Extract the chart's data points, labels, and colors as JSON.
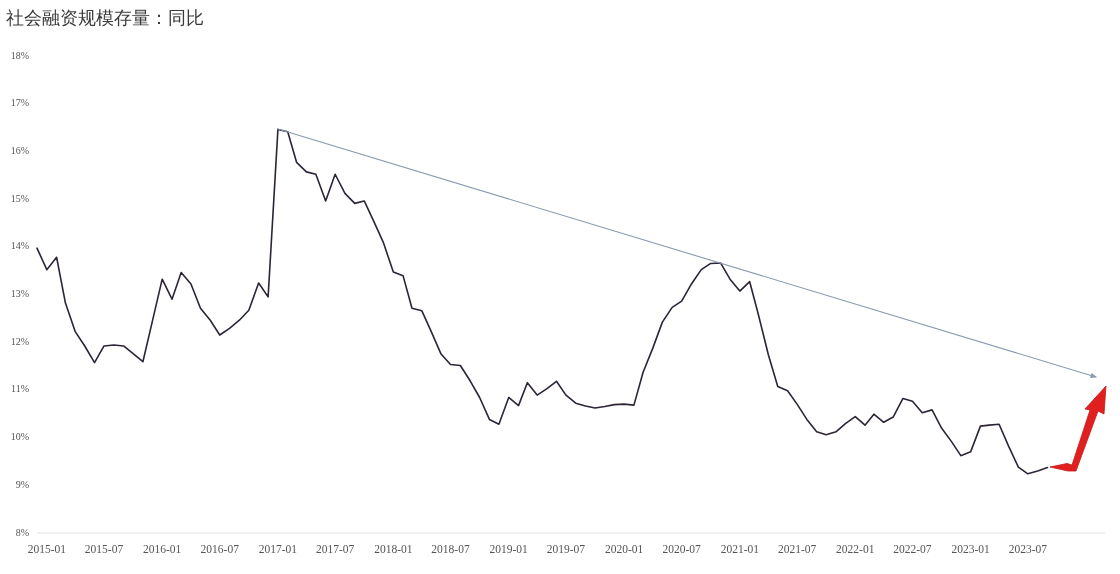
{
  "chart_data": {
    "type": "line",
    "title": "社会融资规模存量：同比",
    "xlim": [
      "2014-12",
      "2024-03"
    ],
    "xticks": [
      "2015-01",
      "2015-07",
      "2016-01",
      "2016-07",
      "2017-01",
      "2017-07",
      "2018-01",
      "2018-07",
      "2019-01",
      "2019-07",
      "2020-01",
      "2020-07",
      "2021-01",
      "2021-07",
      "2022-01",
      "2022-07",
      "2023-01",
      "2023-07"
    ],
    "ylim": [
      8,
      18
    ],
    "yticks": [
      {
        "value": 8,
        "label": "8%"
      },
      {
        "value": 9,
        "label": "9%"
      },
      {
        "value": 10,
        "label": "10%"
      },
      {
        "value": 11,
        "label": "11%"
      },
      {
        "value": 12,
        "label": "12%"
      },
      {
        "value": 13,
        "label": "13%"
      },
      {
        "value": 14,
        "label": "14%"
      },
      {
        "value": 15,
        "label": "15%"
      },
      {
        "value": 16,
        "label": "16%"
      },
      {
        "value": 17,
        "label": "17%"
      },
      {
        "value": 18,
        "label": "18%"
      }
    ],
    "x": [
      "2014-12",
      "2015-01",
      "2015-02",
      "2015-03",
      "2015-04",
      "2015-05",
      "2015-06",
      "2015-07",
      "2015-08",
      "2015-09",
      "2015-10",
      "2015-11",
      "2015-12",
      "2016-01",
      "2016-02",
      "2016-03",
      "2016-04",
      "2016-05",
      "2016-06",
      "2016-07",
      "2016-08",
      "2016-09",
      "2016-10",
      "2016-11",
      "2016-12",
      "2017-01",
      "2017-02",
      "2017-03",
      "2017-04",
      "2017-05",
      "2017-06",
      "2017-07",
      "2017-08",
      "2017-09",
      "2017-10",
      "2017-11",
      "2017-12",
      "2018-01",
      "2018-02",
      "2018-03",
      "2018-04",
      "2018-05",
      "2018-06",
      "2018-07",
      "2018-08",
      "2018-09",
      "2018-10",
      "2018-11",
      "2018-12",
      "2019-01",
      "2019-02",
      "2019-03",
      "2019-04",
      "2019-05",
      "2019-06",
      "2019-07",
      "2019-08",
      "2019-09",
      "2019-10",
      "2019-11",
      "2019-12",
      "2020-01",
      "2020-02",
      "2020-03",
      "2020-04",
      "2020-05",
      "2020-06",
      "2020-07",
      "2020-08",
      "2020-09",
      "2020-10",
      "2020-11",
      "2020-12",
      "2021-01",
      "2021-02",
      "2021-03",
      "2021-04",
      "2021-05",
      "2021-06",
      "2021-07",
      "2021-08",
      "2021-09",
      "2021-10",
      "2021-11",
      "2021-12",
      "2022-01",
      "2022-02",
      "2022-03",
      "2022-04",
      "2022-05",
      "2022-06",
      "2022-07",
      "2022-08",
      "2022-09",
      "2022-10",
      "2022-11",
      "2022-12",
      "2023-01",
      "2023-02",
      "2023-03",
      "2023-04",
      "2023-05",
      "2023-06",
      "2023-07",
      "2023-08",
      "2023-09"
    ],
    "series": [
      {
        "color": "#2d2438",
        "values": [
          13.95,
          13.5,
          13.76,
          12.8,
          12.2,
          11.9,
          11.55,
          11.9,
          11.92,
          11.9,
          11.74,
          11.57,
          12.42,
          13.3,
          12.88,
          13.44,
          13.2,
          12.69,
          12.44,
          12.13,
          12.27,
          12.44,
          12.65,
          13.22,
          12.93,
          16.44,
          16.39,
          15.75,
          15.55,
          15.5,
          14.94,
          15.5,
          15.1,
          14.89,
          14.94,
          14.5,
          14.06,
          13.45,
          13.37,
          12.69,
          12.64,
          12.2,
          11.73,
          11.51,
          11.49,
          11.17,
          10.82,
          10.36,
          10.26,
          10.82,
          10.65,
          11.13,
          10.87,
          11.0,
          11.16,
          10.87,
          10.7,
          10.64,
          10.6,
          10.63,
          10.67,
          10.68,
          10.66,
          11.35,
          11.86,
          12.4,
          12.71,
          12.84,
          13.2,
          13.5,
          13.63,
          13.64,
          13.3,
          13.05,
          13.25,
          12.55,
          11.72,
          11.05,
          10.96,
          10.68,
          10.36,
          10.1,
          10.04,
          10.1,
          10.27,
          10.42,
          10.24,
          10.47,
          10.3,
          10.41,
          10.8,
          10.74,
          10.5,
          10.56,
          10.18,
          9.9,
          9.6,
          9.68,
          10.22,
          10.24,
          10.26,
          9.8,
          9.36,
          9.22,
          9.28,
          9.35
        ]
      },
      {
        "type": "line",
        "color": "#8a9ab0",
        "x": [
          "2017-01",
          "2024-02"
        ],
        "values": [
          16.45,
          11.25
        ]
      }
    ]
  }
}
